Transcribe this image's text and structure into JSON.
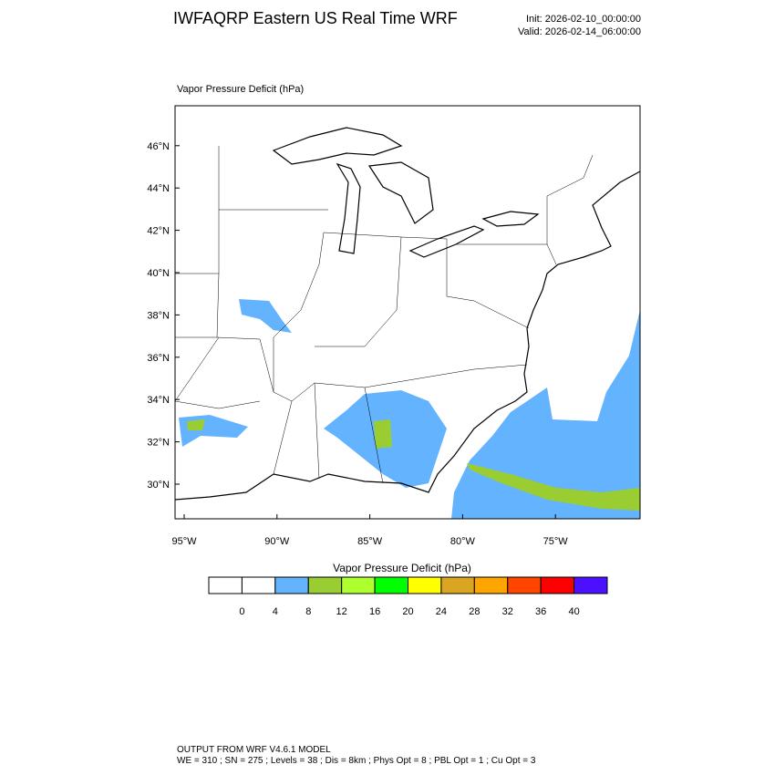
{
  "header": {
    "title": "IWFAQRP Eastern US Real Time WRF",
    "init": "Init: 2026-02-10_00:00:00",
    "valid": "Valid: 2026-02-14_06:00:00"
  },
  "map": {
    "label": "Vapor Pressure Deficit   (hPa)",
    "lat_labels": [
      "30°N",
      "32°N",
      "34°N",
      "36°N",
      "38°N",
      "40°N",
      "42°N",
      "44°N",
      "46°N"
    ],
    "lon_labels": [
      "95°W",
      "90°W",
      "85°W",
      "80°W",
      "75°W"
    ]
  },
  "colorbar": {
    "title": "Vapor Pressure Deficit  (hPa)",
    "labels": [
      0,
      4,
      8,
      12,
      16,
      20,
      24,
      28,
      32,
      36,
      40
    ],
    "colors": [
      "#ffffff",
      "#ffffff",
      "#63b3ff",
      "#9acd32",
      "#adff2f",
      "#00ff00",
      "#ffff00",
      "#daa520",
      "#ffa500",
      "#ff4500",
      "#ff0000",
      "#4b10ff"
    ]
  },
  "footer": {
    "line1": "OUTPUT FROM WRF V4.6.1 MODEL",
    "line2": "WE = 310 ; SN = 275 ; Levels = 38 ; Dis = 8km ; Phys Opt = 8 ; PBL Opt = 1 ; Cu Opt = 3"
  }
}
